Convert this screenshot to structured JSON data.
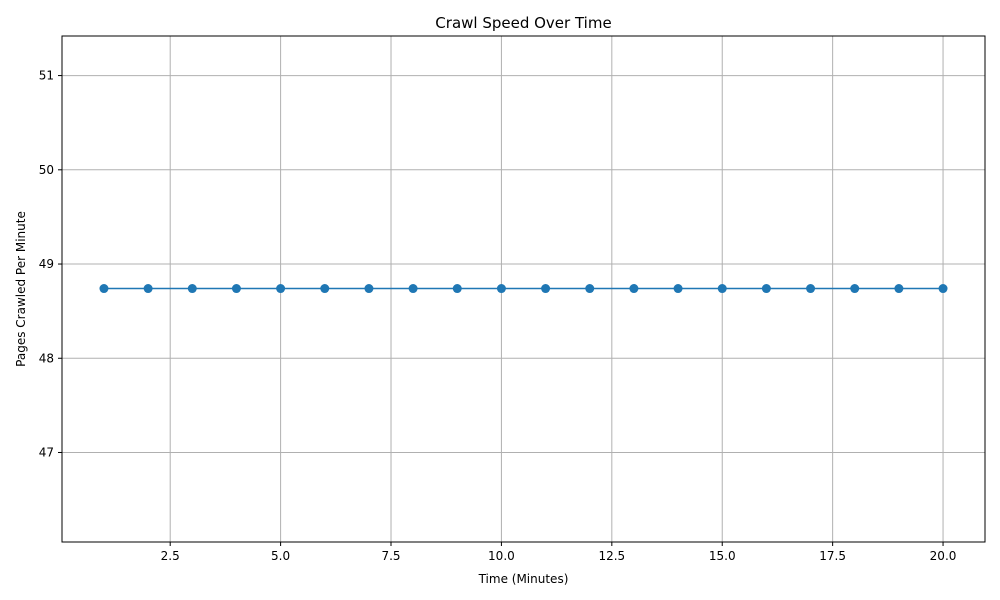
{
  "chart_data": {
    "type": "line",
    "title": "Crawl Speed Over Time",
    "xlabel": "Time (Minutes)",
    "ylabel": "Pages Crawled Per Minute",
    "xlim": [
      0.05,
      20.95
    ],
    "ylim": [
      46.05,
      51.42
    ],
    "xticks": [
      2.5,
      5.0,
      7.5,
      10.0,
      12.5,
      15.0,
      17.5,
      20.0
    ],
    "xtick_labels": [
      "2.5",
      "5.0",
      "7.5",
      "10.0",
      "12.5",
      "15.0",
      "17.5",
      "20.0"
    ],
    "yticks": [
      47,
      48,
      49,
      50,
      51
    ],
    "ytick_labels": [
      "47",
      "48",
      "49",
      "50",
      "51"
    ],
    "grid": true,
    "marker": "circle",
    "color": "#1f77b4",
    "series": [
      {
        "x": [
          1,
          2,
          3,
          4,
          5,
          6,
          7,
          8,
          9,
          10,
          11,
          12,
          13,
          14,
          15,
          16,
          17,
          18,
          19,
          20
        ],
        "values": [
          48.74,
          48.74,
          48.74,
          48.74,
          48.74,
          48.74,
          48.74,
          48.74,
          48.74,
          48.74,
          48.74,
          48.74,
          48.74,
          48.74,
          48.74,
          48.74,
          48.74,
          48.74,
          48.74,
          48.74
        ]
      }
    ]
  }
}
